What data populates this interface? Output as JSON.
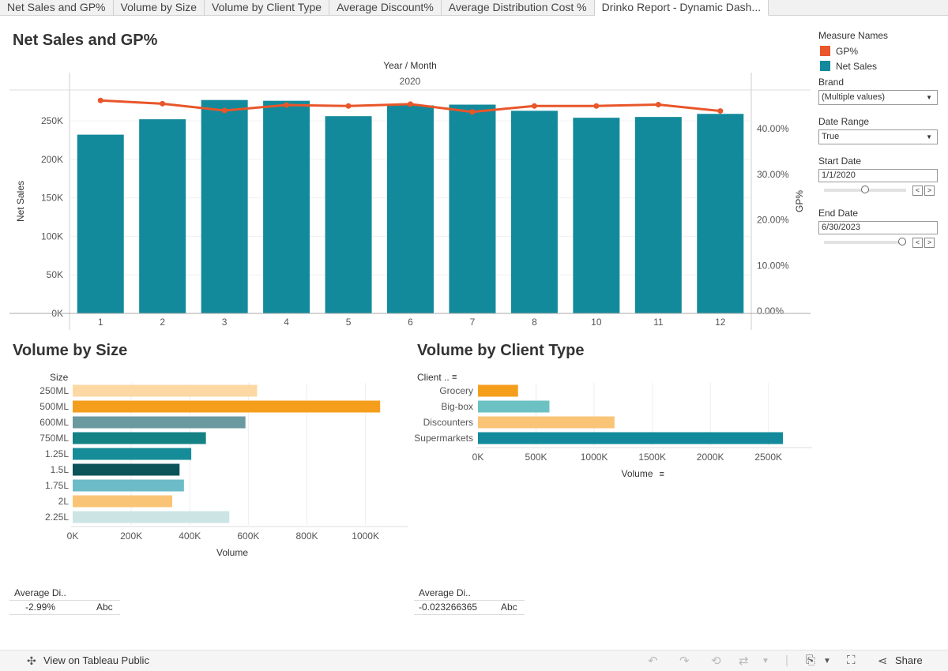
{
  "tabs": [
    {
      "label": "Net Sales and GP%"
    },
    {
      "label": "Volume by Size"
    },
    {
      "label": "Volume by Client Type"
    },
    {
      "label": "Average Discount%"
    },
    {
      "label": "Average Distribution Cost %"
    },
    {
      "label": "Drinko Report - Dynamic Dash..."
    }
  ],
  "active_tab": 5,
  "sheets": {
    "net_sales_title": "Net Sales and GP%",
    "size_title": "Volume by Size",
    "client_title": "Volume by Client Type"
  },
  "colors": {
    "teal": "#138a9b",
    "orange_line": "#e8562a",
    "sidebar_orange": "#e8562a",
    "sidebar_teal": "#138a9b"
  },
  "sidebar": {
    "legend_title": "Measure Names",
    "legend_items": [
      {
        "label": "GP%",
        "color": "#e8562a"
      },
      {
        "label": "Net Sales",
        "color": "#138a9b"
      }
    ],
    "brand_label": "Brand",
    "brand_value": "(Multiple values)",
    "date_range_label": "Date Range",
    "date_range_value": "True",
    "start_date_label": "Start Date",
    "start_date_value": "1/1/2020",
    "start_slider_level": 0.5,
    "end_date_label": "End Date",
    "end_date_value": "6/30/2023",
    "end_slider_level": 0.95
  },
  "chart_data": [
    {
      "type": "bar",
      "title": "Net Sales and GP%",
      "header_top": "Year  /  Month",
      "header_year": "2020",
      "categories": [
        "1",
        "2",
        "3",
        "4",
        "5",
        "6",
        "7",
        "8",
        "10",
        "11",
        "12"
      ],
      "series": [
        {
          "name": "Net Sales",
          "axis": "left",
          "values": [
            232000,
            252000,
            277000,
            276000,
            256000,
            270000,
            271000,
            263000,
            254000,
            255000,
            259000
          ]
        },
        {
          "name": "GP%",
          "type": "line",
          "axis": "right",
          "values": [
            0.462,
            0.455,
            0.44,
            0.452,
            0.45,
            0.454,
            0.437,
            0.45,
            0.45,
            0.453,
            0.439
          ]
        }
      ],
      "ylabel": "Net Sales",
      "y2label": "GP%",
      "ylim": [
        0,
        290000
      ],
      "yticks": [
        0,
        50000,
        100000,
        150000,
        200000,
        250000
      ],
      "yticklabels": [
        "0K",
        "50K",
        "100K",
        "150K",
        "200K",
        "250K"
      ],
      "y2lim": [
        -0.005,
        0.485
      ],
      "y2ticks": [
        0,
        0.1,
        0.2,
        0.3,
        0.4
      ],
      "y2ticklabels": [
        "0.00%",
        "10.00%",
        "20.00%",
        "30.00%",
        "40.00%"
      ]
    },
    {
      "type": "bar",
      "orientation": "horizontal",
      "title": "Volume by Size",
      "row_header": "Size",
      "categories": [
        "250ML",
        "500ML",
        "600ML",
        "750ML",
        "1.25L",
        "1.5L",
        "1.75L",
        "2L",
        "2.25L"
      ],
      "values": [
        630000,
        1050000,
        590000,
        455000,
        405000,
        365000,
        380000,
        340000,
        535000
      ],
      "colors": [
        "#fcd9a4",
        "#f59e1b",
        "#6a9a9f",
        "#148185",
        "#178c99",
        "#0b5259",
        "#6bbcc7",
        "#fac477",
        "#cce5e4"
      ],
      "xlabel": "Volume",
      "xlim": [
        0,
        1090000
      ],
      "xticks": [
        0,
        200000,
        400000,
        600000,
        800000,
        1000000
      ],
      "xticklabels": [
        "0K",
        "200K",
        "400K",
        "600K",
        "800K",
        "1000K"
      ]
    },
    {
      "type": "bar",
      "orientation": "horizontal",
      "title": "Volume by Client Type",
      "row_header": "Client ..",
      "categories": [
        "Grocery",
        "Big-box",
        "Discounters",
        "Supermarkets"
      ],
      "values": [
        345000,
        615000,
        1175000,
        2625000
      ],
      "colors": [
        "#f59e1b",
        "#6cc1c2",
        "#fac477",
        "#138a9b"
      ],
      "xlabel": "Volume",
      "xlim": [
        0,
        2740000
      ],
      "xticks": [
        0,
        500000,
        1000000,
        1500000,
        2000000,
        2500000
      ],
      "xticklabels": [
        "0K",
        "500K",
        "1000K",
        "1500K",
        "2000K",
        "2500K"
      ]
    }
  ],
  "mini_tables": [
    {
      "header": "Average Di..",
      "value": "-2.99%",
      "abc": "Abc"
    },
    {
      "header": "Average Di..",
      "value": "-0.023266365",
      "abc": "Abc"
    }
  ],
  "footer": {
    "view_label": "View on Tableau Public",
    "share_label": "Share"
  }
}
